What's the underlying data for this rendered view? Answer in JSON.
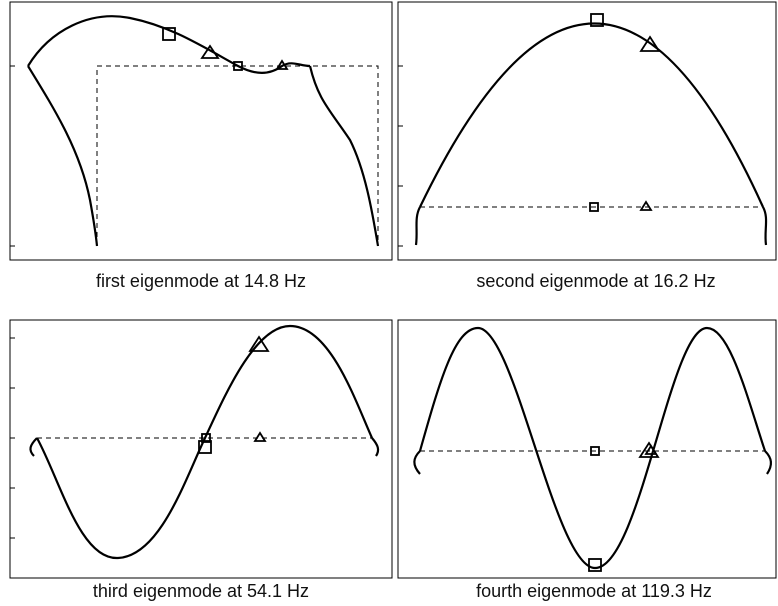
{
  "panels": [
    {
      "caption": "first eigenmode at 14.8 Hz"
    },
    {
      "caption": "second eigenmode at 16.2 Hz"
    },
    {
      "caption": "third eigenmode at 54.1 Hz"
    },
    {
      "caption": "fourth eigenmode at 119.3 Hz"
    }
  ]
}
